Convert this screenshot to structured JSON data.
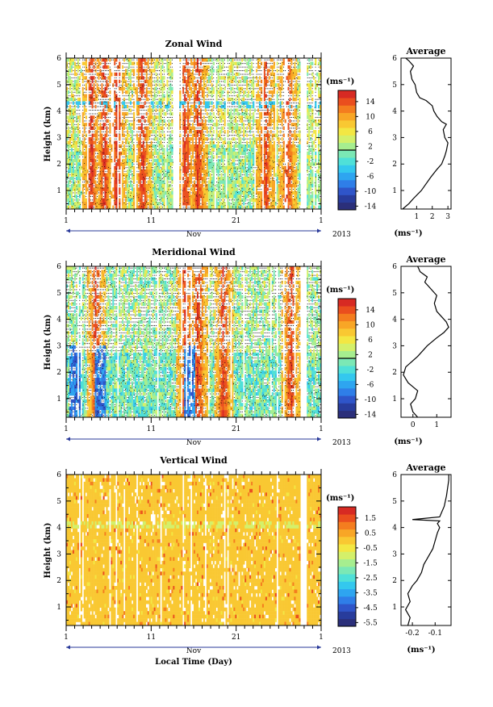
{
  "figure": {
    "year": "2013",
    "month_label": "Nov",
    "xlabel": "Local Time (Day)",
    "ylabel": "Height (km)",
    "x_ticks": [
      "1",
      "11",
      "21",
      "1"
    ],
    "y_ticks": [
      "1",
      "2",
      "3",
      "4",
      "5",
      "6"
    ],
    "unit": "(ms⁻¹)"
  },
  "panels": [
    {
      "title": "Zonal Wind",
      "colorbar_ticks": [
        "14",
        "10",
        "6",
        "2",
        "-2",
        "-6",
        "-10",
        "-14"
      ],
      "avg_title": "Average",
      "avg_xticks": [
        "1",
        "2",
        "3"
      ]
    },
    {
      "title": "Meridional Wind",
      "colorbar_ticks": [
        "14",
        "10",
        "6",
        "2",
        "-2",
        "-6",
        "-10",
        "-14"
      ],
      "avg_title": "Average",
      "avg_xticks": [
        "0",
        "1"
      ]
    },
    {
      "title": "Vertical Wind",
      "colorbar_ticks": [
        "1.5",
        "0.5",
        "-0.5",
        "-1.5",
        "-2.5",
        "-3.5",
        "-4.5",
        "-5.5"
      ],
      "avg_title": "Average",
      "avg_xticks": [
        "-0.2",
        "-0.1"
      ]
    }
  ],
  "chart_data": [
    {
      "type": "heatmap",
      "title": "Zonal Wind",
      "xlabel": "",
      "ylabel": "Height (km)",
      "x_range_days": [
        1,
        31
      ],
      "ylim": [
        0.3,
        6
      ],
      "colorbar_range": [
        -16,
        16
      ],
      "colorbar_levels": [
        -16,
        -14,
        -12,
        -10,
        -8,
        -6,
        -4,
        -2,
        0,
        2,
        4,
        6,
        8,
        10,
        12,
        14,
        16
      ],
      "colorbar_ticks": [
        14,
        10,
        6,
        2,
        -2,
        -6,
        -10,
        -14
      ],
      "strong_positive_streaks_day": [
        4.0,
        5.5,
        7.0,
        10.0,
        15.0,
        16.5,
        24.5,
        27.0
      ],
      "data_gaps_day": [
        14.0,
        29.0
      ]
    },
    {
      "type": "line",
      "title": "Average",
      "xlabel": "(ms⁻¹)",
      "ylabel": "",
      "xlim": [
        0,
        3.2
      ],
      "ylim": [
        0.3,
        6
      ],
      "x": [
        0.1,
        0.5,
        0.8,
        1.3,
        1.9,
        2.3,
        2.6,
        2.8,
        2.9,
        3.0,
        2.8,
        2.7,
        2.9,
        2.6,
        2.3,
        2.1,
        2.0,
        1.6,
        1.2,
        1.0,
        0.9,
        0.7,
        0.6,
        0.8,
        0.5,
        0.3
      ],
      "y": [
        0.3,
        0.5,
        0.7,
        1.0,
        1.5,
        1.8,
        2.0,
        2.3,
        2.5,
        2.8,
        3.0,
        3.3,
        3.5,
        3.6,
        3.8,
        4.0,
        4.2,
        4.4,
        4.5,
        4.7,
        5.0,
        5.2,
        5.5,
        5.7,
        5.9,
        6.0
      ]
    },
    {
      "type": "heatmap",
      "title": "Meridional Wind",
      "xlabel": "",
      "ylabel": "Height (km)",
      "x_range_days": [
        1,
        31
      ],
      "ylim": [
        0.3,
        6
      ],
      "colorbar_range": [
        -16,
        16
      ],
      "colorbar_levels": [
        -16,
        -14,
        -12,
        -10,
        -8,
        -6,
        -4,
        -2,
        0,
        2,
        4,
        6,
        8,
        10,
        12,
        14,
        16
      ],
      "colorbar_ticks": [
        14,
        10,
        6,
        2,
        -2,
        -6,
        -10,
        -14
      ],
      "strong_positive_streaks_day": [
        4.5,
        15.0,
        16.5,
        19.5,
        27.5
      ],
      "strong_negative_streaks_day": [
        2.0,
        5.0,
        15.5
      ],
      "data_gaps_day": [
        29.0
      ]
    },
    {
      "type": "line",
      "title": "Average",
      "xlabel": "(ms⁻¹)",
      "ylabel": "",
      "xlim": [
        -0.5,
        1.6
      ],
      "ylim": [
        0.3,
        6
      ],
      "x": [
        0.2,
        0.0,
        -0.1,
        0.1,
        0.2,
        -0.2,
        -0.4,
        -0.3,
        0.2,
        0.6,
        1.0,
        1.3,
        1.5,
        1.4,
        1.2,
        1.0,
        0.9,
        1.0,
        0.8,
        0.5,
        0.6,
        0.3,
        0.2
      ],
      "y": [
        0.3,
        0.5,
        0.8,
        1.0,
        1.3,
        1.6,
        1.9,
        2.2,
        2.6,
        3.0,
        3.3,
        3.5,
        3.7,
        3.9,
        4.1,
        4.3,
        4.6,
        4.9,
        5.1,
        5.4,
        5.6,
        5.8,
        6.0
      ]
    },
    {
      "type": "heatmap",
      "title": "Vertical Wind",
      "xlabel": "Local Time (Day)",
      "ylabel": "Height (km)",
      "x_range_days": [
        1,
        31
      ],
      "ylim": [
        0.3,
        6
      ],
      "colorbar_range": [
        -6,
        2
      ],
      "colorbar_levels": [
        -6,
        -5.5,
        -5,
        -4.5,
        -4,
        -3.5,
        -3,
        -2.5,
        -2,
        -1.5,
        -1,
        -0.5,
        0,
        0.5,
        1,
        1.5,
        2
      ],
      "colorbar_ticks": [
        1.5,
        0.5,
        -0.5,
        -1.5,
        -2.5,
        -3.5,
        -4.5,
        -5.5
      ],
      "dominant_level": 0,
      "data_gaps_day": [
        29.0
      ]
    },
    {
      "type": "line",
      "title": "Average",
      "xlabel": "(ms⁻¹)",
      "ylabel": "",
      "xlim": [
        -0.25,
        -0.03
      ],
      "ylim": [
        0.3,
        6
      ],
      "x": [
        -0.22,
        -0.21,
        -0.23,
        -0.21,
        -0.22,
        -0.2,
        -0.18,
        -0.16,
        -0.15,
        -0.13,
        -0.11,
        -0.1,
        -0.09,
        -0.08,
        -0.09,
        -0.08,
        -0.2,
        -0.08,
        -0.06,
        -0.05,
        -0.045,
        -0.04,
        -0.04
      ],
      "y": [
        0.3,
        0.6,
        0.9,
        1.2,
        1.5,
        1.8,
        2.0,
        2.3,
        2.6,
        2.9,
        3.2,
        3.5,
        3.8,
        4.0,
        4.15,
        4.25,
        4.3,
        4.4,
        4.8,
        5.2,
        5.5,
        5.8,
        6.0
      ]
    }
  ]
}
